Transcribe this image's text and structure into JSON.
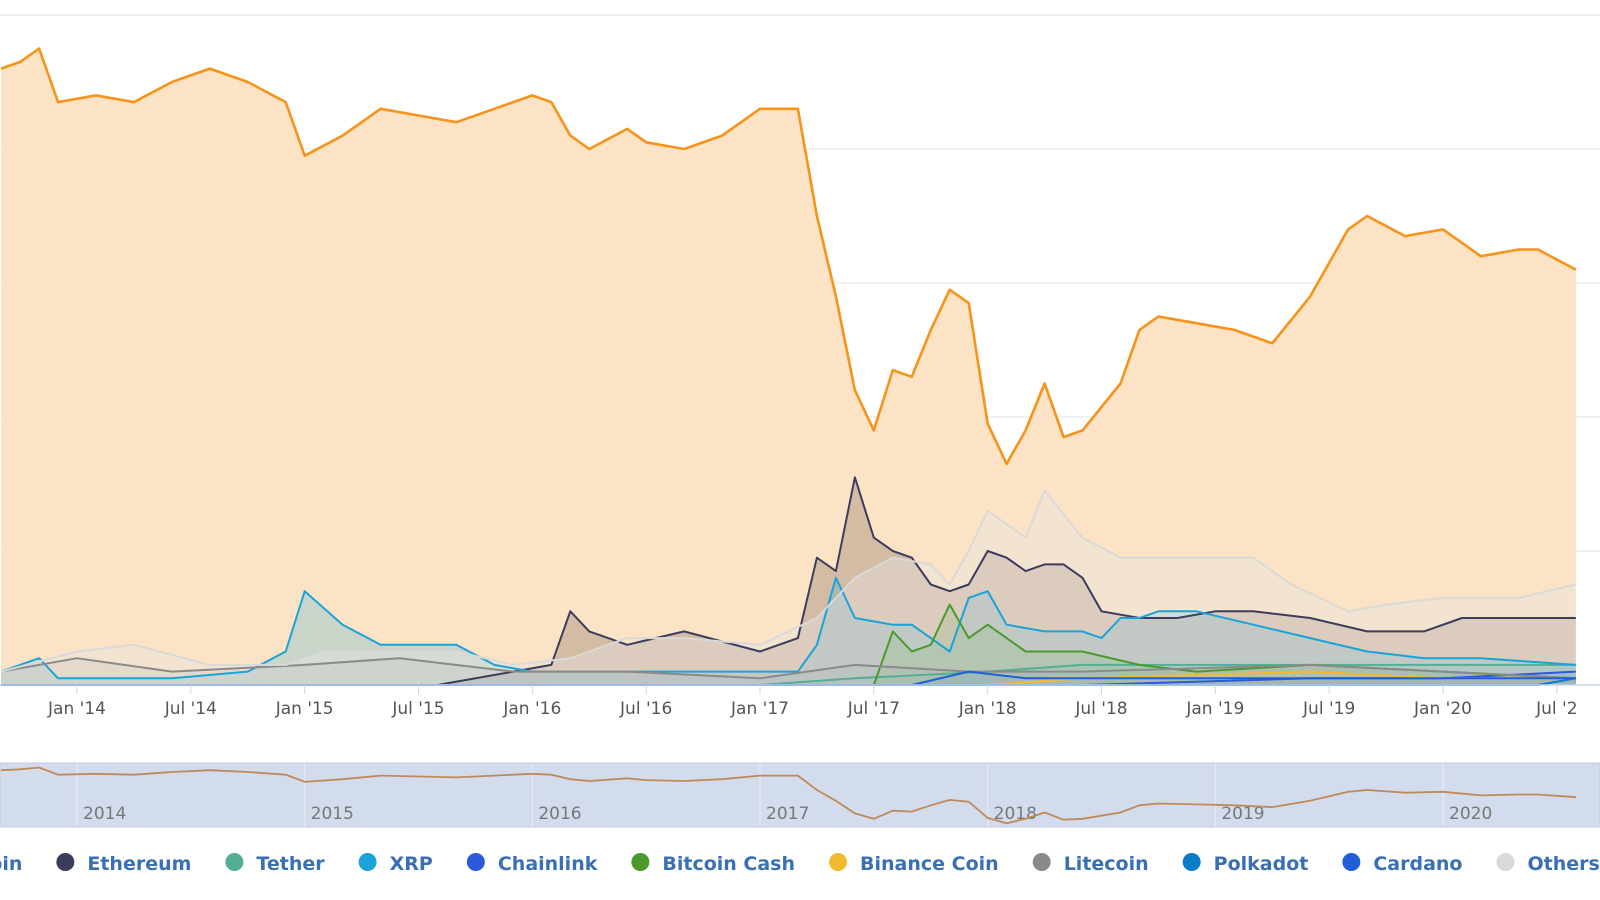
{
  "chart_data": {
    "type": "area",
    "title": "",
    "xlabel": "",
    "ylabel": "",
    "x_range": [
      "2013-09",
      "2020-08"
    ],
    "ylim": [
      0,
      100
    ],
    "y_unit": "percent of total market cap",
    "grid": "horizontal",
    "legend_placement": "bottom",
    "x_ticks": [
      {
        "label": "Jan '14",
        "date": "2014-01"
      },
      {
        "label": "Jul '14",
        "date": "2014-07"
      },
      {
        "label": "Jan '15",
        "date": "2015-01"
      },
      {
        "label": "Jul '15",
        "date": "2015-07"
      },
      {
        "label": "Jan '16",
        "date": "2016-01"
      },
      {
        "label": "Jul '16",
        "date": "2016-07"
      },
      {
        "label": "Jan '17",
        "date": "2017-01"
      },
      {
        "label": "Jul '17",
        "date": "2017-07"
      },
      {
        "label": "Jan '18",
        "date": "2018-01"
      },
      {
        "label": "Jul '18",
        "date": "2018-07"
      },
      {
        "label": "Jan '19",
        "date": "2019-01"
      },
      {
        "label": "Jul '19",
        "date": "2019-07"
      },
      {
        "label": "Jan '20",
        "date": "2020-01"
      },
      {
        "label": "Jul '2",
        "date": "2020-07"
      }
    ],
    "navigator_ticks": [
      {
        "label": "2014",
        "date": "2014-01"
      },
      {
        "label": "2015",
        "date": "2015-01"
      },
      {
        "label": "2016",
        "date": "2016-01"
      },
      {
        "label": "2017",
        "date": "2017-01"
      },
      {
        "label": "2018",
        "date": "2018-01"
      },
      {
        "label": "2019",
        "date": "2019-01"
      },
      {
        "label": "2020",
        "date": "2020-01"
      }
    ],
    "series": [
      {
        "name": "coin",
        "color": "#f7931a",
        "fill": "#fce3c5",
        "points": [
          [
            "2013-09",
            92
          ],
          [
            "2013-10",
            93
          ],
          [
            "2013-11",
            95
          ],
          [
            "2013-12",
            87
          ],
          [
            "2014-02",
            88
          ],
          [
            "2014-04",
            87
          ],
          [
            "2014-06",
            90
          ],
          [
            "2014-08",
            92
          ],
          [
            "2014-10",
            90
          ],
          [
            "2014-12",
            87
          ],
          [
            "2015-01",
            79
          ],
          [
            "2015-03",
            82
          ],
          [
            "2015-05",
            86
          ],
          [
            "2015-07",
            85
          ],
          [
            "2015-09",
            84
          ],
          [
            "2015-11",
            86
          ],
          [
            "2016-01",
            88
          ],
          [
            "2016-02",
            87
          ],
          [
            "2016-03",
            82
          ],
          [
            "2016-04",
            80
          ],
          [
            "2016-06",
            83
          ],
          [
            "2016-07",
            81
          ],
          [
            "2016-09",
            80
          ],
          [
            "2016-11",
            82
          ],
          [
            "2017-01",
            86
          ],
          [
            "2017-02",
            86
          ],
          [
            "2017-03",
            86
          ],
          [
            "2017-04",
            70
          ],
          [
            "2017-05",
            58
          ],
          [
            "2017-06",
            44
          ],
          [
            "2017-07",
            38
          ],
          [
            "2017-08",
            47
          ],
          [
            "2017-09",
            46
          ],
          [
            "2017-10",
            53
          ],
          [
            "2017-11",
            59
          ],
          [
            "2017-12",
            57
          ],
          [
            "2018-01",
            39
          ],
          [
            "2018-02",
            33
          ],
          [
            "2018-03",
            38
          ],
          [
            "2018-04",
            45
          ],
          [
            "2018-05",
            37
          ],
          [
            "2018-06",
            38
          ],
          [
            "2018-08",
            45
          ],
          [
            "2018-09",
            53
          ],
          [
            "2018-10",
            55
          ],
          [
            "2018-12",
            54
          ],
          [
            "2019-02",
            53
          ],
          [
            "2019-04",
            51
          ],
          [
            "2019-06",
            58
          ],
          [
            "2019-08",
            68
          ],
          [
            "2019-09",
            70
          ],
          [
            "2019-11",
            67
          ],
          [
            "2020-01",
            68
          ],
          [
            "2020-03",
            64
          ],
          [
            "2020-05",
            65
          ],
          [
            "2020-06",
            65
          ],
          [
            "2020-08",
            62
          ]
        ]
      },
      {
        "name": "Ethereum",
        "color": "#3c3c5d",
        "fill": "rgba(120,95,90,0.30)",
        "points": [
          [
            "2013-09",
            0
          ],
          [
            "2015-08",
            0
          ],
          [
            "2016-02",
            3
          ],
          [
            "2016-03",
            11
          ],
          [
            "2016-04",
            8
          ],
          [
            "2016-06",
            6
          ],
          [
            "2016-09",
            8
          ],
          [
            "2017-01",
            5
          ],
          [
            "2017-03",
            7
          ],
          [
            "2017-04",
            19
          ],
          [
            "2017-05",
            17
          ],
          [
            "2017-06",
            31
          ],
          [
            "2017-07",
            22
          ],
          [
            "2017-08",
            20
          ],
          [
            "2017-09",
            19
          ],
          [
            "2017-10",
            15
          ],
          [
            "2017-11",
            14
          ],
          [
            "2017-12",
            15
          ],
          [
            "2018-01",
            20
          ],
          [
            "2018-02",
            19
          ],
          [
            "2018-03",
            17
          ],
          [
            "2018-04",
            18
          ],
          [
            "2018-05",
            18
          ],
          [
            "2018-06",
            16
          ],
          [
            "2018-07",
            11
          ],
          [
            "2018-09",
            10
          ],
          [
            "2018-11",
            10
          ],
          [
            "2019-01",
            11
          ],
          [
            "2019-03",
            11
          ],
          [
            "2019-06",
            10
          ],
          [
            "2019-09",
            8
          ],
          [
            "2019-12",
            8
          ],
          [
            "2020-02",
            10
          ],
          [
            "2020-04",
            10
          ],
          [
            "2020-06",
            10
          ],
          [
            "2020-08",
            10
          ]
        ]
      },
      {
        "name": "Tether",
        "color": "#53ae94",
        "fill": "rgba(83,174,148,0.25)",
        "points": [
          [
            "2013-09",
            0
          ],
          [
            "2015-03",
            0
          ],
          [
            "2017-01",
            0
          ],
          [
            "2017-06",
            1
          ],
          [
            "2018-01",
            2
          ],
          [
            "2018-06",
            3
          ],
          [
            "2019-01",
            3
          ],
          [
            "2019-06",
            3
          ],
          [
            "2020-01",
            3
          ],
          [
            "2020-08",
            3
          ]
        ]
      },
      {
        "name": "XRP",
        "color": "#1aa3d9",
        "fill": "rgba(26,163,217,0.22)",
        "points": [
          [
            "2013-09",
            2
          ],
          [
            "2013-11",
            4
          ],
          [
            "2013-12",
            1
          ],
          [
            "2014-06",
            1
          ],
          [
            "2014-10",
            2
          ],
          [
            "2014-12",
            5
          ],
          [
            "2015-01",
            14
          ],
          [
            "2015-03",
            9
          ],
          [
            "2015-05",
            6
          ],
          [
            "2015-07",
            6
          ],
          [
            "2015-09",
            6
          ],
          [
            "2015-11",
            3
          ],
          [
            "2016-01",
            2
          ],
          [
            "2016-06",
            2
          ],
          [
            "2016-12",
            2
          ],
          [
            "2017-03",
            2
          ],
          [
            "2017-04",
            6
          ],
          [
            "2017-05",
            16
          ],
          [
            "2017-06",
            10
          ],
          [
            "2017-08",
            9
          ],
          [
            "2017-09",
            9
          ],
          [
            "2017-10",
            7
          ],
          [
            "2017-11",
            5
          ],
          [
            "2017-12",
            13
          ],
          [
            "2018-01",
            14
          ],
          [
            "2018-02",
            9
          ],
          [
            "2018-04",
            8
          ],
          [
            "2018-06",
            8
          ],
          [
            "2018-07",
            7
          ],
          [
            "2018-08",
            10
          ],
          [
            "2018-09",
            10
          ],
          [
            "2018-10",
            11
          ],
          [
            "2018-12",
            11
          ],
          [
            "2019-03",
            9
          ],
          [
            "2019-06",
            7
          ],
          [
            "2019-09",
            5
          ],
          [
            "2019-12",
            4
          ],
          [
            "2020-03",
            4
          ],
          [
            "2020-08",
            3
          ]
        ]
      },
      {
        "name": "Chainlink",
        "color": "#2a5ada",
        "fill": "rgba(42,90,218,0.20)",
        "points": [
          [
            "2013-09",
            0
          ],
          [
            "2017-09",
            0
          ],
          [
            "2018-06",
            0
          ],
          [
            "2019-06",
            1
          ],
          [
            "2020-01",
            1
          ],
          [
            "2020-08",
            2
          ]
        ]
      },
      {
        "name": "Bitcoin Cash",
        "color": "#4a9a2e",
        "fill": "rgba(74,154,46,0.25)",
        "points": [
          [
            "2013-09",
            0
          ],
          [
            "2017-07",
            0
          ],
          [
            "2017-08",
            8
          ],
          [
            "2017-09",
            5
          ],
          [
            "2017-10",
            6
          ],
          [
            "2017-11",
            12
          ],
          [
            "2017-12",
            7
          ],
          [
            "2018-01",
            9
          ],
          [
            "2018-03",
            5
          ],
          [
            "2018-06",
            5
          ],
          [
            "2018-09",
            3
          ],
          [
            "2018-12",
            2
          ],
          [
            "2019-06",
            3
          ],
          [
            "2020-01",
            2
          ],
          [
            "2020-08",
            1
          ]
        ]
      },
      {
        "name": "Binance Coin",
        "color": "#f3ba2f",
        "fill": "rgba(243,186,47,0.20)",
        "points": [
          [
            "2013-09",
            0
          ],
          [
            "2018-01",
            0
          ],
          [
            "2018-06",
            1
          ],
          [
            "2019-06",
            2
          ],
          [
            "2020-01",
            1
          ],
          [
            "2020-08",
            1
          ]
        ]
      },
      {
        "name": "Litecoin",
        "color": "#8a8a8a",
        "fill": "rgba(138,138,138,0.20)",
        "points": [
          [
            "2013-09",
            2
          ],
          [
            "2014-01",
            4
          ],
          [
            "2014-06",
            2
          ],
          [
            "2015-01",
            3
          ],
          [
            "2015-06",
            4
          ],
          [
            "2015-12",
            2
          ],
          [
            "2016-06",
            2
          ],
          [
            "2017-01",
            1
          ],
          [
            "2017-06",
            3
          ],
          [
            "2017-12",
            2
          ],
          [
            "2018-06",
            2
          ],
          [
            "2019-06",
            3
          ],
          [
            "2020-01",
            2
          ],
          [
            "2020-08",
            1
          ]
        ]
      },
      {
        "name": "Polkadot",
        "color": "#0a7acb",
        "fill": "rgba(10,122,203,0.15)",
        "points": [
          [
            "2013-09",
            0
          ],
          [
            "2020-06",
            0
          ],
          [
            "2020-08",
            1
          ]
        ]
      },
      {
        "name": "Cardano",
        "color": "#1f5fd8",
        "fill": "rgba(31,95,216,0.15)",
        "points": [
          [
            "2013-09",
            0
          ],
          [
            "2017-09",
            0
          ],
          [
            "2017-12",
            2
          ],
          [
            "2018-03",
            1
          ],
          [
            "2019-01",
            1
          ],
          [
            "2020-08",
            1
          ]
        ]
      },
      {
        "name": "Others",
        "color": "#d9d9d9",
        "fill": "rgba(230,230,230,0.40)",
        "points": [
          [
            "2013-09",
            2
          ],
          [
            "2014-01",
            5
          ],
          [
            "2014-04",
            6
          ],
          [
            "2014-08",
            3
          ],
          [
            "2014-12",
            3
          ],
          [
            "2015-02",
            5
          ],
          [
            "2015-06",
            5
          ],
          [
            "2015-09",
            5
          ],
          [
            "2015-12",
            3
          ],
          [
            "2016-03",
            4
          ],
          [
            "2016-06",
            7
          ],
          [
            "2016-09",
            7
          ],
          [
            "2017-01",
            6
          ],
          [
            "2017-04",
            10
          ],
          [
            "2017-06",
            16
          ],
          [
            "2017-08",
            19
          ],
          [
            "2017-10",
            18
          ],
          [
            "2017-11",
            15
          ],
          [
            "2017-12",
            20
          ],
          [
            "2018-01",
            26
          ],
          [
            "2018-03",
            22
          ],
          [
            "2018-04",
            29
          ],
          [
            "2018-06",
            22
          ],
          [
            "2018-08",
            19
          ],
          [
            "2018-10",
            19
          ],
          [
            "2018-12",
            19
          ],
          [
            "2019-03",
            19
          ],
          [
            "2019-05",
            15
          ],
          [
            "2019-08",
            11
          ],
          [
            "2019-10",
            12
          ],
          [
            "2020-01",
            13
          ],
          [
            "2020-03",
            13
          ],
          [
            "2020-05",
            13
          ],
          [
            "2020-08",
            15
          ]
        ]
      }
    ]
  },
  "legend": {
    "items": [
      {
        "label": "coin",
        "color": "#f7931a"
      },
      {
        "label": "Ethereum",
        "color": "#3c3c5d"
      },
      {
        "label": "Tether",
        "color": "#53ae94"
      },
      {
        "label": "XRP",
        "color": "#1aa3d9"
      },
      {
        "label": "Chainlink",
        "color": "#2a5ada"
      },
      {
        "label": "Bitcoin Cash",
        "color": "#4a9a2e"
      },
      {
        "label": "Binance Coin",
        "color": "#f3ba2f"
      },
      {
        "label": "Litecoin",
        "color": "#8a8a8a"
      },
      {
        "label": "Polkadot",
        "color": "#0a7acb"
      },
      {
        "label": "Cardano",
        "color": "#1f5fd8"
      },
      {
        "label": "Others",
        "color": "#d9d9d9"
      }
    ]
  }
}
